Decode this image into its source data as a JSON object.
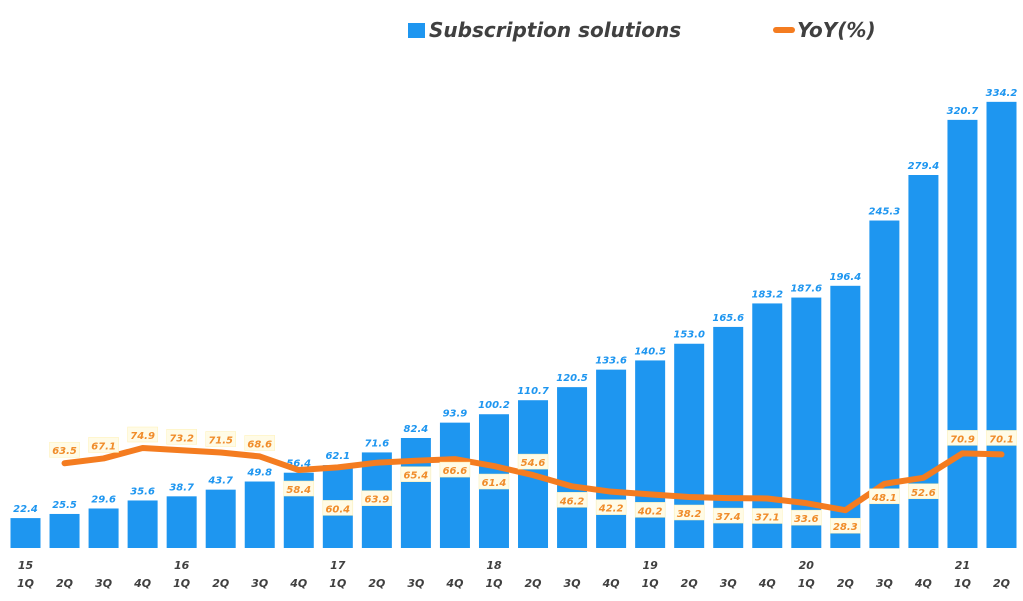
{
  "chart_data": {
    "type": "bar+line",
    "categories": [
      "1Q",
      "2Q",
      "3Q",
      "4Q",
      "1Q",
      "2Q",
      "3Q",
      "4Q",
      "1Q",
      "2Q",
      "3Q",
      "4Q",
      "1Q",
      "2Q",
      "3Q",
      "4Q",
      "1Q",
      "2Q",
      "3Q",
      "4Q",
      "1Q",
      "2Q",
      "3Q",
      "4Q",
      "1Q",
      "2Q"
    ],
    "year_labels": {
      "0": "15",
      "4": "16",
      "8": "17",
      "12": "18",
      "16": "19",
      "20": "20",
      "24": "21"
    },
    "series": [
      {
        "name": "Subscription solutions",
        "type": "bar",
        "color": "#1e96f0",
        "values": [
          22.4,
          25.5,
          29.6,
          35.6,
          38.7,
          43.7,
          49.8,
          56.4,
          62.1,
          71.6,
          82.4,
          93.9,
          100.2,
          110.7,
          120.5,
          133.6,
          140.5,
          153.0,
          165.6,
          183.2,
          187.6,
          196.4,
          245.3,
          279.4,
          320.7,
          334.2
        ],
        "labels": [
          "22.4",
          "25.5",
          "29.6",
          "35.6",
          "38.7",
          "43.7",
          "49.8",
          "56.4",
          "62.1",
          "71.6",
          "82.4",
          "93.9",
          "100.2",
          "110.7",
          "120.5",
          "133.6",
          "140.5",
          "153.0",
          "165.6",
          "183.2",
          "187.6",
          "196.4",
          "245.3",
          "279.4",
          "320.7",
          "334.2"
        ]
      },
      {
        "name": "YoY(%)",
        "type": "line",
        "color": "#f47c20",
        "values": [
          null,
          63.5,
          67.1,
          74.9,
          73.2,
          71.5,
          68.6,
          58.4,
          60.4,
          63.9,
          65.4,
          66.6,
          61.4,
          54.6,
          46.2,
          42.2,
          40.2,
          38.2,
          37.4,
          37.1,
          33.6,
          28.3,
          48.1,
          52.6,
          70.9,
          70.1
        ],
        "labels": [
          null,
          "63.5",
          "67.1",
          "74.9",
          "73.2",
          "71.5",
          "68.6",
          "58.4",
          "60.4",
          "63.9",
          "65.4",
          "66.6",
          "61.4",
          "54.6",
          "46.2",
          "42.2",
          "40.2",
          "38.2",
          "37.4",
          "37.1",
          "33.6",
          "28.3",
          "48.1",
          "52.6",
          "70.9",
          "70.1"
        ]
      }
    ],
    "ylim": [
      0,
      350
    ],
    "grid": false,
    "legend": "top-center"
  },
  "legend": {
    "bar_label": "Subscription solutions",
    "line_label": "YoY(%)"
  }
}
